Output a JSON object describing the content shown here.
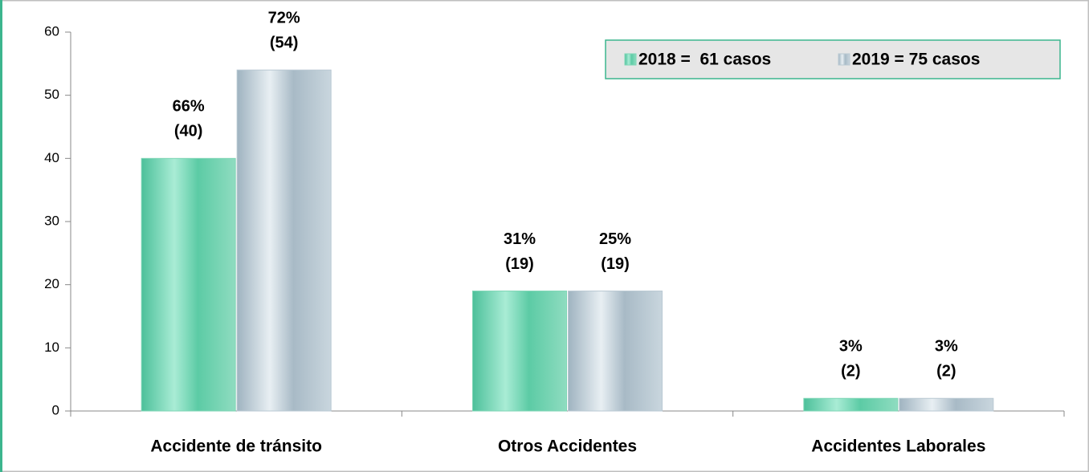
{
  "chart_data": {
    "type": "bar",
    "categories": [
      "Accidente de tránsito",
      "Otros Accidentes",
      "Accidentes Laborales"
    ],
    "series": [
      {
        "name": "2018 =  61 casos",
        "color": "#7fd6b6",
        "values": [
          40,
          19,
          2
        ],
        "value_labels": [
          "(40)",
          "(19)",
          "(2)"
        ],
        "percent_labels": [
          "66%",
          "31%",
          "3%"
        ]
      },
      {
        "name": "2019 = 75 casos",
        "color": "#b9c9d3",
        "values": [
          54,
          19,
          2
        ],
        "value_labels": [
          "(54)",
          "(19)",
          "(2)"
        ],
        "percent_labels": [
          "72%",
          "25%",
          "3%"
        ]
      }
    ],
    "ylim": [
      0,
      60
    ],
    "yticks": [
      0,
      10,
      20,
      30,
      40,
      50,
      60
    ],
    "grid": false,
    "legend": "top-right"
  }
}
